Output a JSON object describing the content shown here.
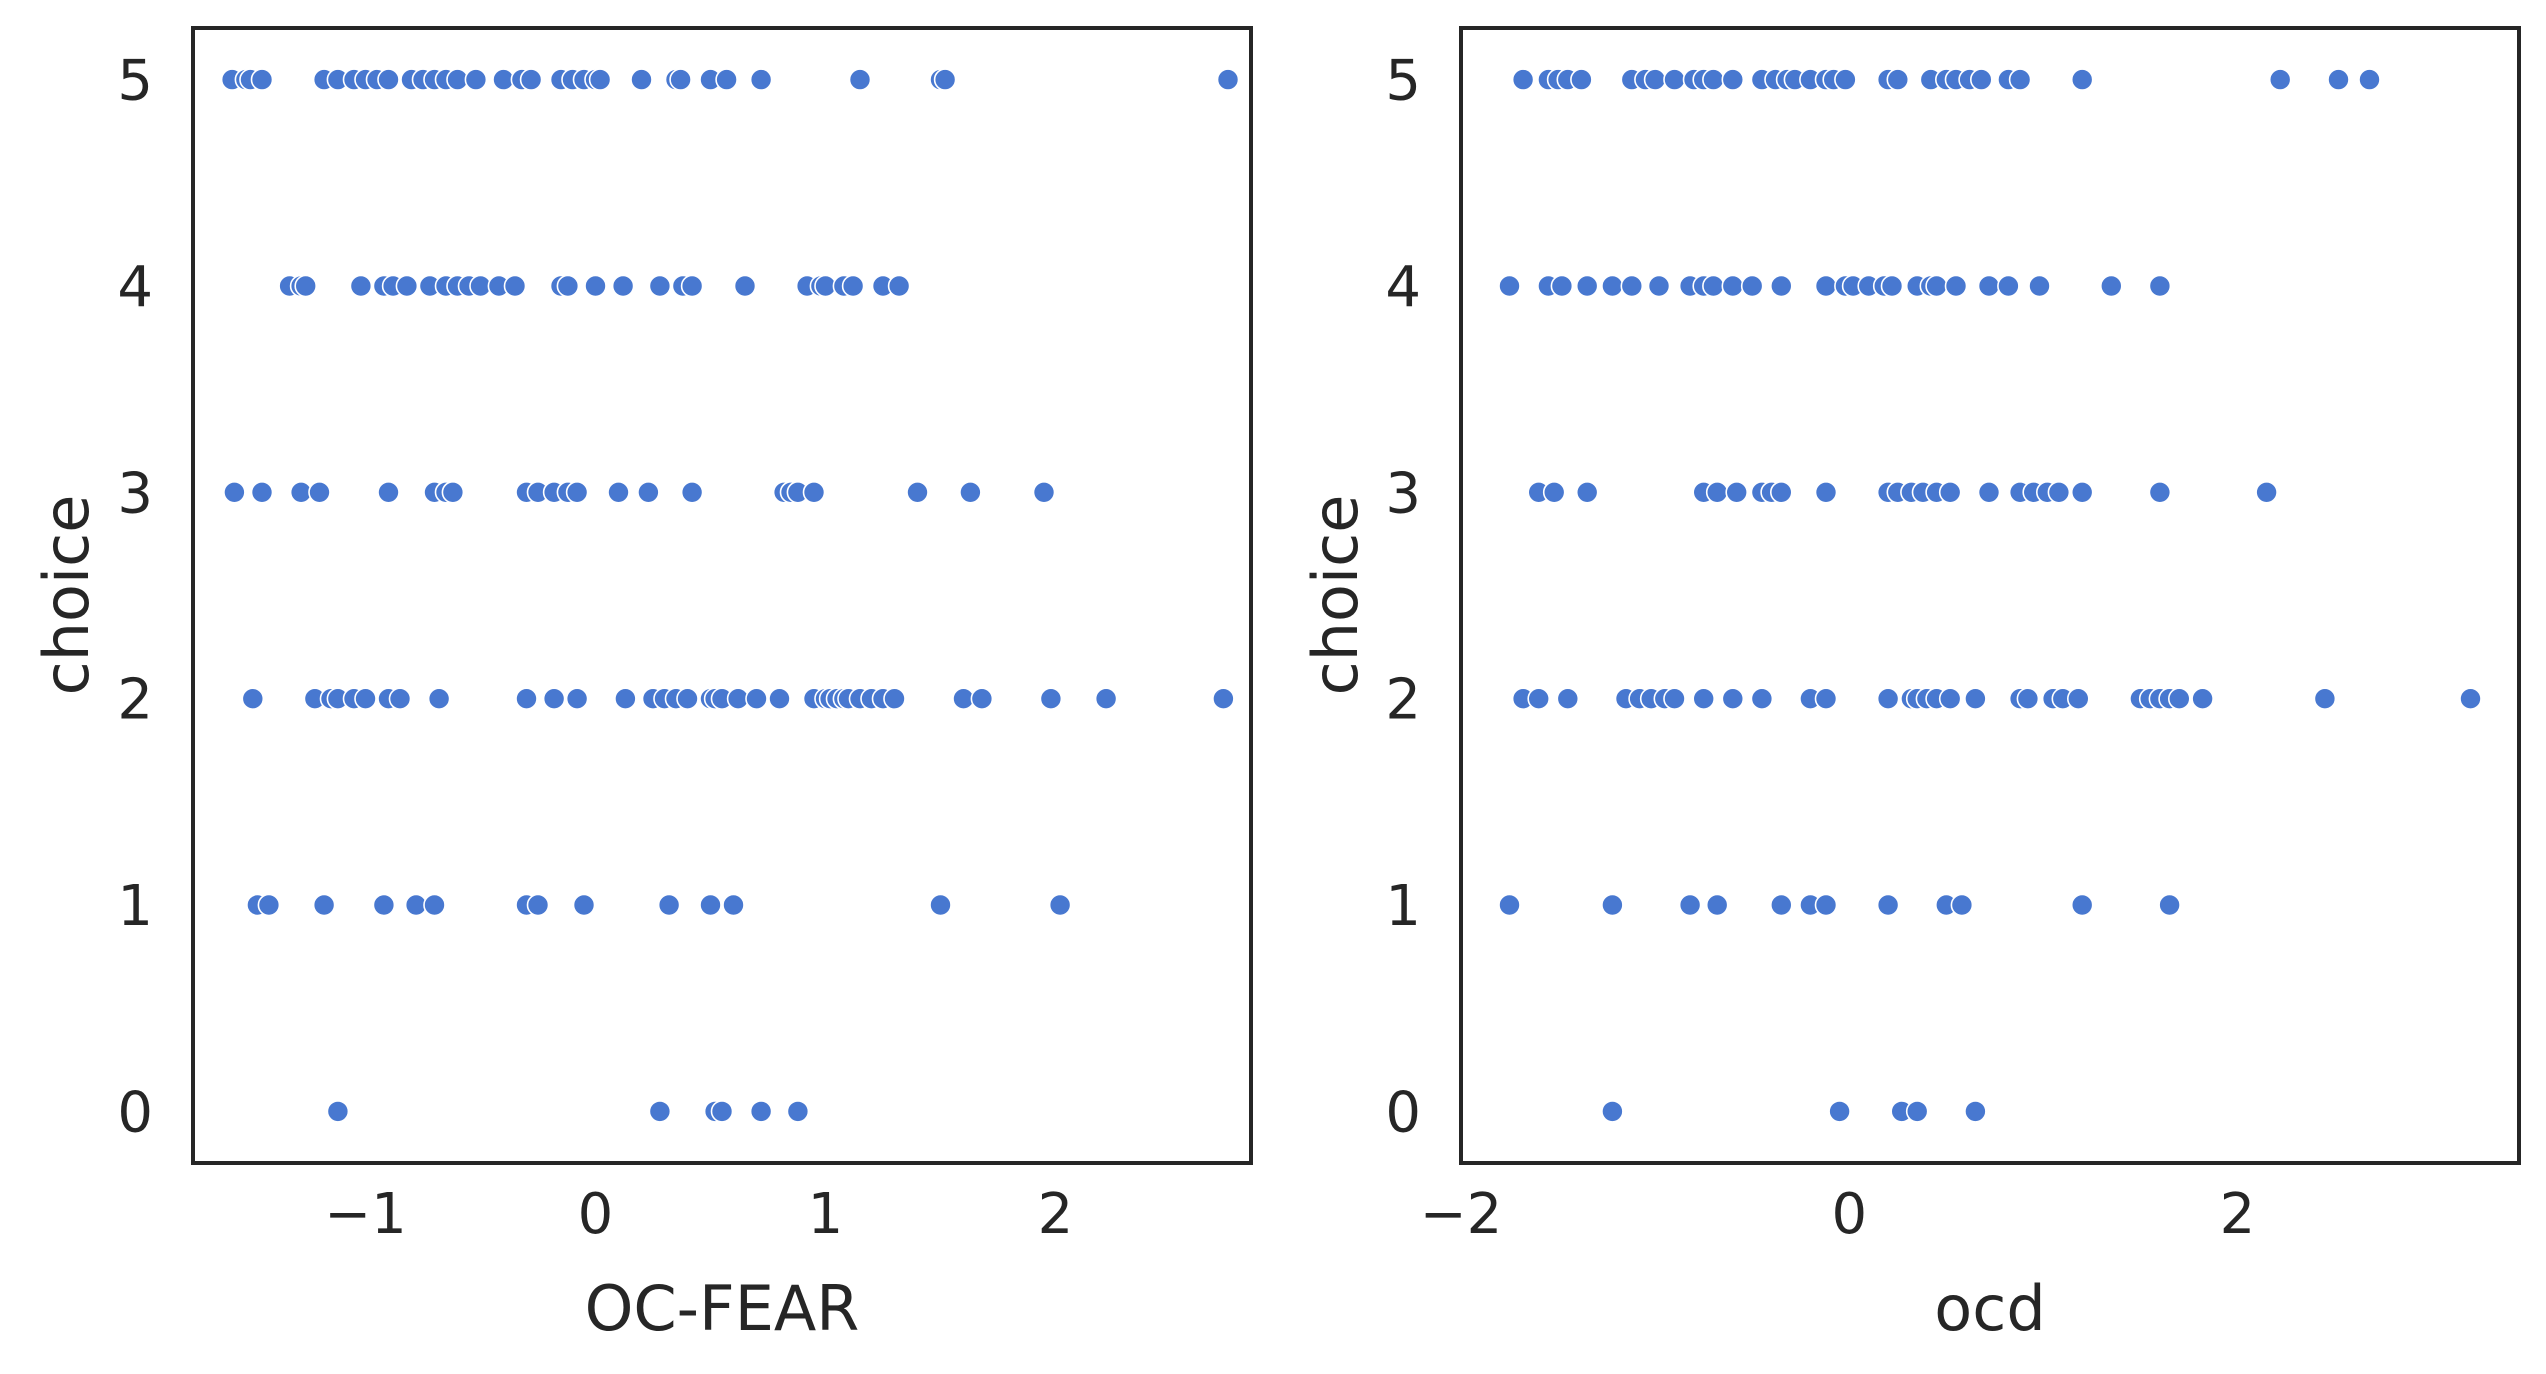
{
  "colors": {
    "marker": "#4878d0",
    "marker_edge": "#ffffff",
    "axes": "#262626",
    "background": "#ffffff"
  },
  "chart_data": [
    {
      "type": "scatter",
      "title": "",
      "xlabel": "OC-FEAR",
      "ylabel": "choice",
      "xlim": [
        -1.75,
        2.85
      ],
      "ylim": [
        -0.25,
        5.25
      ],
      "xticks": [
        -1,
        0,
        1,
        2
      ],
      "xtick_labels": [
        "−1",
        "0",
        "1",
        "2"
      ],
      "yticks": [
        0,
        1,
        2,
        3,
        4,
        5
      ],
      "ytick_labels": [
        "0",
        "1",
        "2",
        "3",
        "4",
        "5"
      ],
      "grid": false,
      "legend": false,
      "points": {
        "5": [
          -1.58,
          -1.52,
          -1.5,
          -1.45,
          -1.18,
          -1.12,
          -1.05,
          -1.0,
          -0.95,
          -0.9,
          -0.8,
          -0.75,
          -0.7,
          -0.65,
          -0.6,
          -0.52,
          -0.4,
          -0.32,
          -0.28,
          -0.15,
          -0.1,
          -0.05,
          0.0,
          0.02,
          0.2,
          0.35,
          0.37,
          0.5,
          0.57,
          0.72,
          1.15,
          1.5,
          1.52,
          2.75
        ],
        "4": [
          -1.33,
          -1.28,
          -1.26,
          -1.02,
          -0.92,
          -0.88,
          -0.82,
          -0.72,
          -0.65,
          -0.6,
          -0.55,
          -0.5,
          -0.42,
          -0.35,
          -0.15,
          -0.12,
          0.0,
          0.12,
          0.28,
          0.38,
          0.42,
          0.65,
          0.92,
          0.98,
          1.0,
          1.08,
          1.12,
          1.25,
          1.32
        ],
        "3": [
          -1.57,
          -1.45,
          -1.28,
          -1.2,
          -0.9,
          -0.7,
          -0.65,
          -0.62,
          -0.3,
          -0.25,
          -0.18,
          -0.12,
          -0.08,
          0.1,
          0.23,
          0.42,
          0.82,
          0.85,
          0.88,
          0.95,
          1.4,
          1.63,
          1.95
        ],
        "2": [
          -1.49,
          -1.22,
          -1.15,
          -1.12,
          -1.05,
          -1.0,
          -0.9,
          -0.85,
          -0.68,
          -0.3,
          -0.18,
          -0.08,
          0.13,
          0.25,
          0.3,
          0.35,
          0.4,
          0.5,
          0.52,
          0.55,
          0.62,
          0.7,
          0.8,
          0.95,
          1.0,
          1.02,
          1.05,
          1.08,
          1.1,
          1.15,
          1.2,
          1.25,
          1.3,
          1.6,
          1.68,
          1.98,
          2.22,
          2.73
        ],
        "1": [
          -1.47,
          -1.42,
          -1.18,
          -0.92,
          -0.78,
          -0.7,
          -0.3,
          -0.25,
          -0.05,
          0.32,
          0.5,
          0.6,
          1.5,
          2.02
        ],
        "0": [
          -1.12,
          0.28,
          0.52,
          0.55,
          0.72,
          0.88
        ]
      }
    },
    {
      "type": "scatter",
      "title": "",
      "xlabel": "ocd",
      "ylabel": "choice",
      "xlim": [
        -2.0,
        3.45
      ],
      "ylim": [
        -0.25,
        5.25
      ],
      "xticks": [
        -2,
        0,
        2
      ],
      "xtick_labels": [
        "−2",
        "0",
        "2"
      ],
      "yticks": [
        0,
        1,
        2,
        3,
        4,
        5
      ],
      "ytick_labels": [
        "0",
        "1",
        "2",
        "3",
        "4",
        "5"
      ],
      "grid": false,
      "legend": false,
      "points": {
        "5": [
          -1.68,
          -1.55,
          -1.5,
          -1.45,
          -1.38,
          -1.12,
          -1.05,
          -1.0,
          -0.9,
          -0.8,
          -0.75,
          -0.7,
          -0.6,
          -0.45,
          -0.38,
          -0.32,
          -0.28,
          -0.2,
          -0.12,
          -0.08,
          -0.02,
          0.2,
          0.25,
          0.42,
          0.5,
          0.55,
          0.62,
          0.68,
          0.82,
          0.88,
          1.2,
          2.22,
          2.52,
          2.68
        ],
        "4": [
          -1.75,
          -1.55,
          -1.48,
          -1.35,
          -1.22,
          -1.12,
          -0.98,
          -0.82,
          -0.75,
          -0.7,
          -0.6,
          -0.5,
          -0.35,
          -0.12,
          -0.02,
          0.02,
          0.1,
          0.18,
          0.22,
          0.35,
          0.42,
          0.45,
          0.55,
          0.72,
          0.82,
          0.98,
          1.35,
          1.6
        ],
        "3": [
          -1.6,
          -1.52,
          -1.35,
          -0.75,
          -0.68,
          -0.58,
          -0.45,
          -0.4,
          -0.35,
          -0.12,
          0.2,
          0.25,
          0.32,
          0.38,
          0.45,
          0.52,
          0.72,
          0.88,
          0.95,
          1.02,
          1.08,
          1.2,
          1.6,
          2.15
        ],
        "2": [
          -1.68,
          -1.6,
          -1.45,
          -1.15,
          -1.08,
          -1.02,
          -0.95,
          -0.9,
          -0.75,
          -0.6,
          -0.45,
          -0.2,
          -0.12,
          0.2,
          0.32,
          0.35,
          0.4,
          0.45,
          0.52,
          0.65,
          0.88,
          0.92,
          1.05,
          1.1,
          1.18,
          1.5,
          1.55,
          1.6,
          1.65,
          1.7,
          1.82,
          2.45,
          3.2
        ],
        "1": [
          -1.75,
          -1.22,
          -0.82,
          -0.68,
          -0.35,
          -0.2,
          -0.12,
          0.2,
          0.5,
          0.58,
          1.2,
          1.65
        ],
        "0": [
          -1.22,
          -0.05,
          0.27,
          0.35,
          0.65
        ]
      }
    }
  ]
}
